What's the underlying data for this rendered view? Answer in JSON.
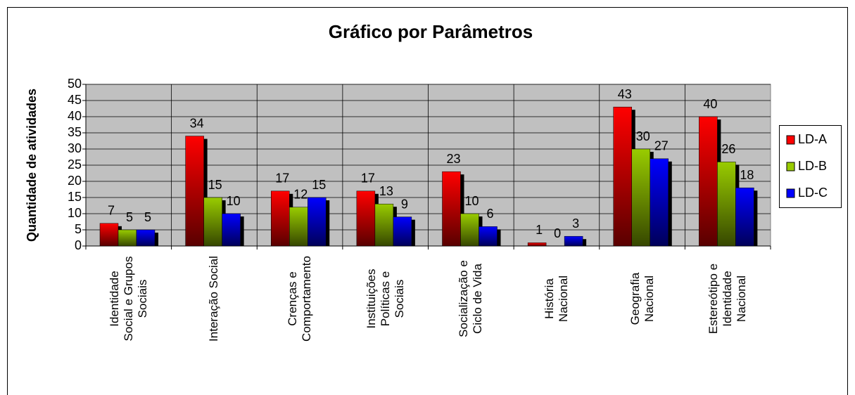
{
  "chart_data": {
    "type": "bar",
    "title": "Gráfico por Parâmetros",
    "y_label": "Quantidade de atividades",
    "categories": [
      "Identidade Social e Grupos Sociais",
      "Interação Social",
      "Crenças e Comportamento",
      "Instituições Políticas e Sociais",
      "Socialização e Ciclo de Vida",
      "História Nacional",
      "Geografia Nacional",
      "Estereótipo e Identidade Nacional"
    ],
    "series": [
      {
        "name": "LD-A",
        "color": "#ff0000",
        "values": [
          7,
          34,
          17,
          17,
          23,
          1,
          43,
          40
        ]
      },
      {
        "name": "LD-B",
        "color": "#99cc00",
        "values": [
          5,
          15,
          12,
          13,
          10,
          0,
          30,
          26
        ]
      },
      {
        "name": "LD-C",
        "color": "#0000ff",
        "values": [
          5,
          10,
          15,
          9,
          6,
          3,
          27,
          18
        ]
      }
    ],
    "ylim": [
      0,
      50
    ],
    "yticks": [
      0,
      5,
      10,
      15,
      20,
      25,
      30,
      35,
      40,
      45,
      50
    ],
    "grid": true,
    "legend": "right"
  }
}
